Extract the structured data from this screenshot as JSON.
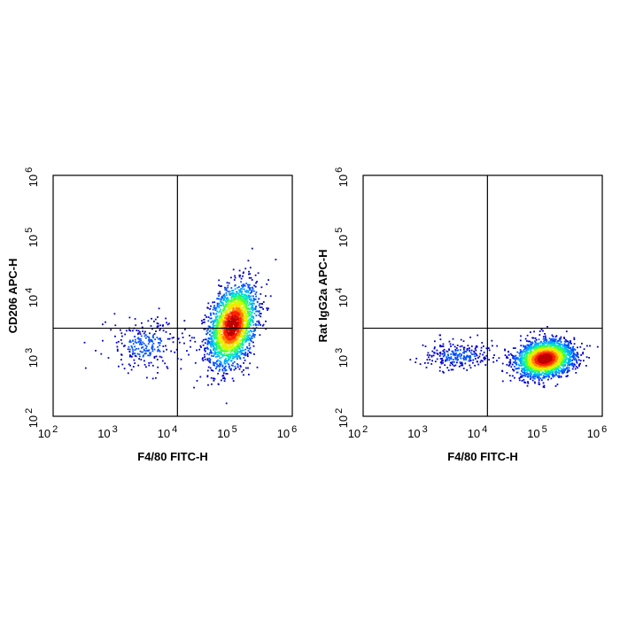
{
  "chart_data": [
    {
      "type": "scatter",
      "subtype": "flow-cytometry-density-dot-plot",
      "title": "",
      "xlabel": "F4/80 FITC-H",
      "ylabel": "CD206 APC-H",
      "xscale": "log",
      "yscale": "log",
      "xlim": [
        100,
        1000000
      ],
      "ylim": [
        100,
        1000000
      ],
      "xticks": [
        {
          "base": "10",
          "exp": "2",
          "value": 100
        },
        {
          "base": "10",
          "exp": "3",
          "value": 1000
        },
        {
          "base": "10",
          "exp": "4",
          "value": 10000
        },
        {
          "base": "10",
          "exp": "5",
          "value": 100000
        },
        {
          "base": "10",
          "exp": "6",
          "value": 1000000
        }
      ],
      "yticks": [
        {
          "base": "10",
          "exp": "2",
          "value": 100
        },
        {
          "base": "10",
          "exp": "3",
          "value": 1000
        },
        {
          "base": "10",
          "exp": "4",
          "value": 10000
        },
        {
          "base": "10",
          "exp": "5",
          "value": 100000
        },
        {
          "base": "10",
          "exp": "6",
          "value": 1000000
        }
      ],
      "quadrant_gate": {
        "x": 12000,
        "y": 2900
      },
      "populations": [
        {
          "center_x": 100000,
          "center_y": 3200,
          "spread_log_x": 0.2,
          "spread_log_y": 0.32,
          "tilt": 0.55,
          "share": 0.9
        },
        {
          "center_x": 3500,
          "center_y": 1500,
          "spread_log_x": 0.33,
          "spread_log_y": 0.22,
          "tilt": 0,
          "share": 0.1
        }
      ],
      "density_colors": [
        "#0000cd",
        "#0050ff",
        "#00a8ff",
        "#00e8c0",
        "#40ff40",
        "#c8ff00",
        "#ffe000",
        "#ff8000",
        "#ff2000",
        "#c00000"
      ]
    },
    {
      "type": "scatter",
      "subtype": "flow-cytometry-density-dot-plot",
      "title": "",
      "xlabel": "F4/80 FITC-H",
      "ylabel": "Rat IgG2a APC-H",
      "xscale": "log",
      "yscale": "log",
      "xlim": [
        100,
        1000000
      ],
      "ylim": [
        100,
        1000000
      ],
      "xticks": [
        {
          "base": "10",
          "exp": "2",
          "value": 100
        },
        {
          "base": "10",
          "exp": "3",
          "value": 1000
        },
        {
          "base": "10",
          "exp": "4",
          "value": 10000
        },
        {
          "base": "10",
          "exp": "5",
          "value": 100000
        },
        {
          "base": "10",
          "exp": "6",
          "value": 1000000
        }
      ],
      "yticks": [
        {
          "base": "10",
          "exp": "2",
          "value": 100
        },
        {
          "base": "10",
          "exp": "3",
          "value": 1000
        },
        {
          "base": "10",
          "exp": "4",
          "value": 10000
        },
        {
          "base": "10",
          "exp": "5",
          "value": 100000
        },
        {
          "base": "10",
          "exp": "6",
          "value": 1000000
        }
      ],
      "quadrant_gate": {
        "x": 12000,
        "y": 2900
      },
      "populations": [
        {
          "center_x": 110000,
          "center_y": 900,
          "spread_log_x": 0.24,
          "spread_log_y": 0.15,
          "tilt": 0.1,
          "share": 0.9
        },
        {
          "center_x": 4000,
          "center_y": 1000,
          "spread_log_x": 0.3,
          "spread_log_y": 0.12,
          "tilt": 0,
          "share": 0.1
        }
      ],
      "density_colors": [
        "#0000cd",
        "#0050ff",
        "#00a8ff",
        "#00e8c0",
        "#40ff40",
        "#c8ff00",
        "#ffe000",
        "#ff8000",
        "#ff2000",
        "#c00000"
      ]
    }
  ]
}
